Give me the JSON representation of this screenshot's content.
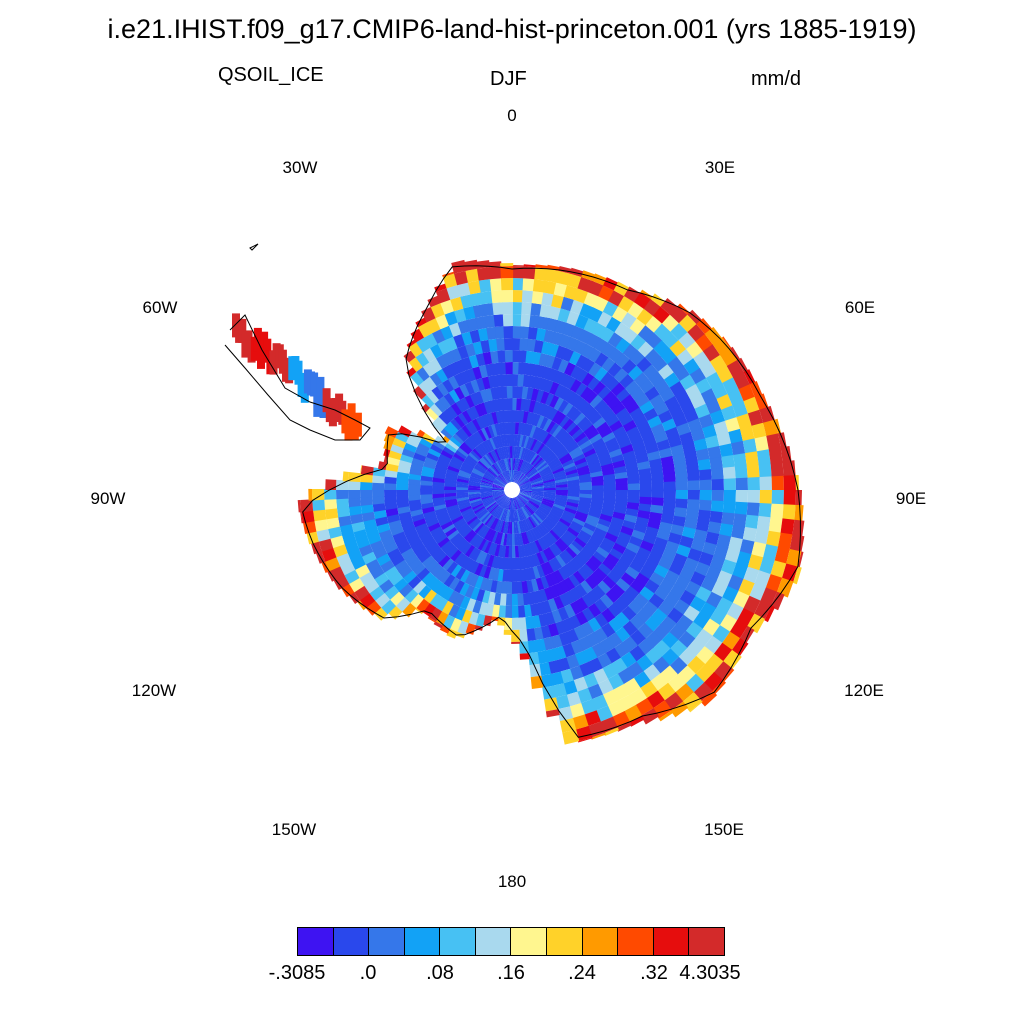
{
  "title": "i.e21.IHIST.f09_g17.CMIP6-land-hist-princeton.001 (yrs 1885-1919)",
  "variable": "QSOIL_ICE",
  "season": "DJF",
  "units": "mm/d",
  "longitude_labels": [
    "0",
    "30E",
    "60E",
    "90E",
    "120E",
    "150E",
    "180",
    "150W",
    "120W",
    "90W",
    "60W",
    "30W"
  ],
  "colorbar": {
    "colors": [
      "#3e13f2",
      "#2a48ec",
      "#3577ea",
      "#12a2f6",
      "#47c1f3",
      "#a9d9ee",
      "#fff68f",
      "#ffd229",
      "#ff9a00",
      "#ff4a00",
      "#e60d0d",
      "#d32a2a"
    ],
    "labels": [
      "-.3085",
      ".0",
      ".08",
      ".16",
      ".24",
      ".32",
      "4.3035"
    ]
  }
}
